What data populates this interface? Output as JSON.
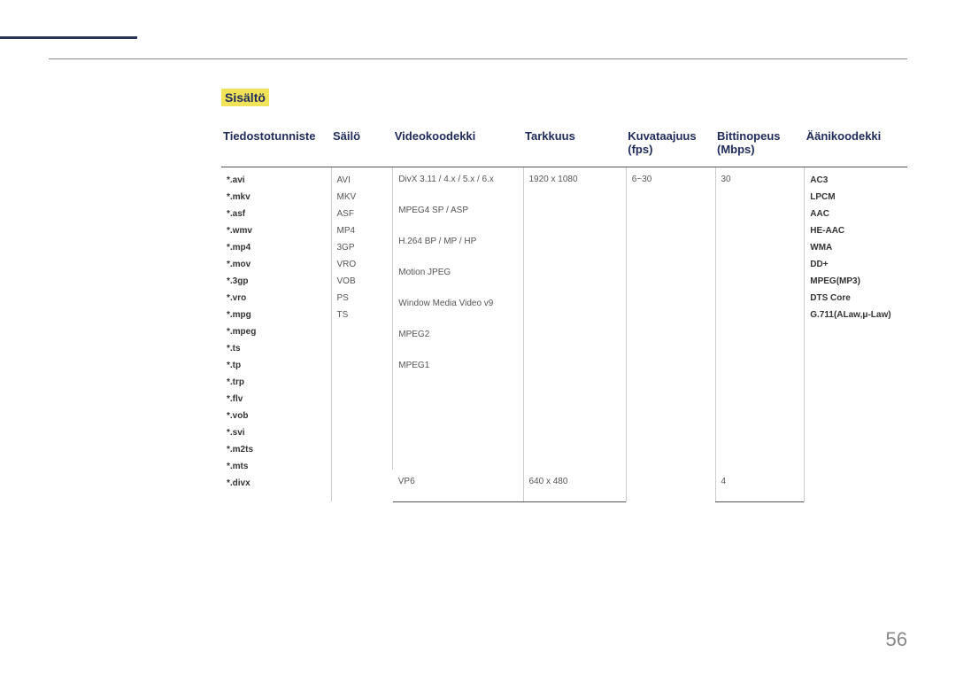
{
  "section_title": "Sisältö",
  "page_number": "56",
  "columns": [
    "Tiedostotunniste",
    "Säilö",
    "Videokoodekki",
    "Tarkkuus",
    "Kuvataajuus (fps)",
    "Bittinopeus (Mbps)",
    "Äänikoodekki"
  ],
  "file_extensions": [
    "*.avi",
    "*.mkv",
    "*.asf",
    "*.wmv",
    "*.mp4",
    "*.mov",
    "*.3gp",
    "*.vro",
    "*.mpg",
    "*.mpeg",
    "*.ts",
    "*.tp",
    "*.trp",
    "*.flv",
    "*.vob",
    "*.svi",
    "*.m2ts",
    "*.mts",
    "*.divx"
  ],
  "containers": [
    "AVI",
    "MKV",
    "ASF",
    "MP4",
    "3GP",
    "VRO",
    "VOB",
    "PS",
    "TS"
  ],
  "video_codecs_group1": [
    "DivX 3.11 / 4.x / 5.x / 6.x",
    "MPEG4 SP / ASP",
    "H.264 BP / MP / HP",
    "Motion JPEG",
    "Window Media Video v9",
    "MPEG2",
    "MPEG1"
  ],
  "video_codecs_group2": [
    "VP6"
  ],
  "resolution_g1": "1920 x 1080",
  "resolution_g2": "640 x 480",
  "fps_g1": "6~30",
  "bitrate_g1": "30",
  "bitrate_g2": "4",
  "audio_codecs": [
    "AC3",
    "LPCM",
    "AAC",
    "HE-AAC",
    "WMA",
    "DD+",
    "MPEG(MP3)",
    "DTS Core",
    "G.711(ALaw,μ-Law)"
  ],
  "colors": {
    "title_bg": "#f0e35a",
    "title_fg": "#1e2a5a",
    "rule": "#2b3356",
    "body_text": "#555555"
  }
}
